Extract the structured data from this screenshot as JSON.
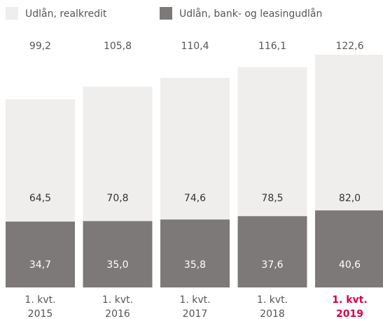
{
  "chart_data": {
    "type": "stacked_bar",
    "categories": [
      [
        "1. kvt.",
        "2015"
      ],
      [
        "1. kvt.",
        "2016"
      ],
      [
        "1. kvt.",
        "2017"
      ],
      [
        "1. kvt.",
        "2018"
      ],
      [
        "1. kvt.",
        "2019"
      ]
    ],
    "series": [
      {
        "name": "Udlån, realkredit",
        "color": "#efeeed",
        "values": [
          64.5,
          70.8,
          74.6,
          78.5,
          82.0
        ],
        "value_labels": [
          "64,5",
          "70,8",
          "74,6",
          "78,5",
          "82,0"
        ]
      },
      {
        "name": "Udlån, bank- og leasingudlån",
        "color": "#7d7978",
        "values": [
          34.7,
          35.0,
          35.8,
          37.6,
          40.6
        ],
        "value_labels": [
          "34,7",
          "35,0",
          "35,8",
          "37,6",
          "40,6"
        ]
      }
    ],
    "totals": [
      99.2,
      105.8,
      110.4,
      116.1,
      122.6
    ],
    "total_labels": [
      "99,2",
      "105,8",
      "110,4",
      "116,1",
      "122,6"
    ],
    "highlight": {
      "index": 4,
      "color": "#d6004c"
    }
  }
}
